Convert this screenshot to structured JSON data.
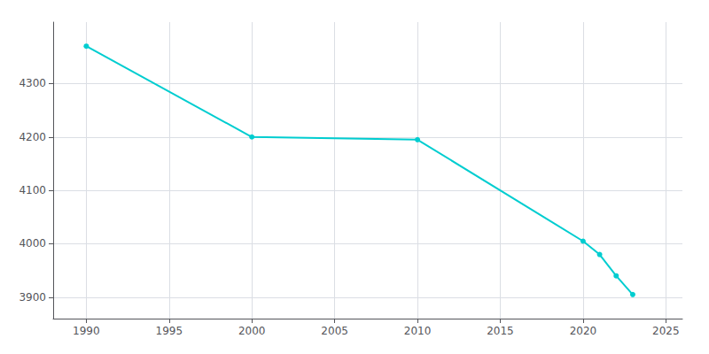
{
  "chart_data": {
    "type": "line",
    "x": [
      1990,
      2000,
      2010,
      2020,
      2021,
      2022,
      2023
    ],
    "values": [
      4370,
      4200,
      4195,
      4005,
      3980,
      3940,
      3905
    ],
    "color": "#00CDD0",
    "marker": "circle",
    "xlim": [
      1988,
      2026
    ],
    "ylim": [
      3860,
      4415
    ],
    "xticks": [
      1990,
      1995,
      2000,
      2005,
      2010,
      2015,
      2020,
      2025
    ],
    "yticks": [
      3900,
      4000,
      4100,
      4200,
      4300
    ],
    "grid": true
  }
}
